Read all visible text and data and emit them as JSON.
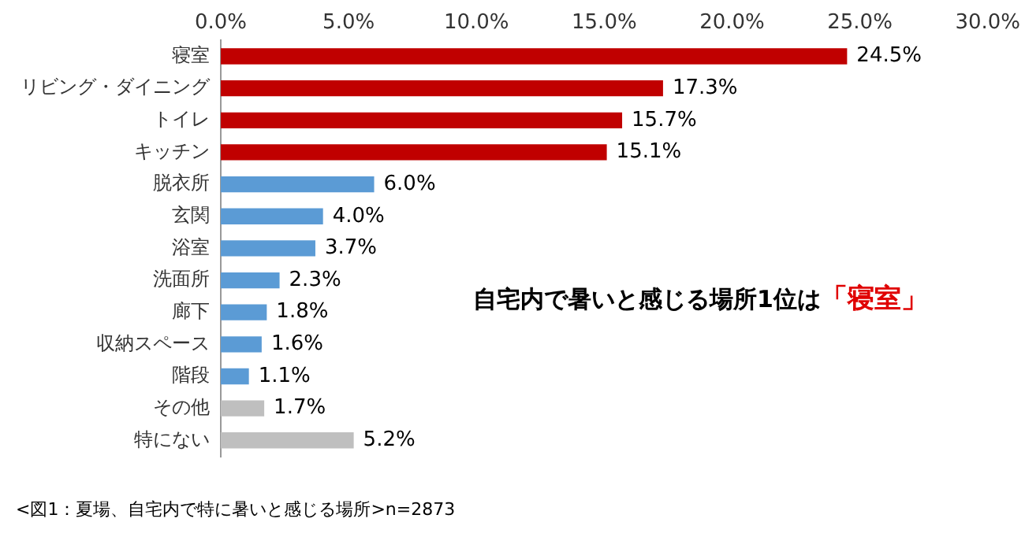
{
  "chart_data": {
    "type": "bar",
    "orientation": "horizontal",
    "categories": [
      "寝室",
      "リビング・ダイニング",
      "トイレ",
      "キッチン",
      "脱衣所",
      "玄関",
      "浴室",
      "洗面所",
      "廊下",
      "収納スペース",
      "階段",
      "その他",
      "特にない"
    ],
    "values": [
      24.5,
      17.3,
      15.7,
      15.1,
      6.0,
      4.0,
      3.7,
      2.3,
      1.8,
      1.6,
      1.1,
      1.7,
      5.2
    ],
    "colors": [
      "#c00000",
      "#c00000",
      "#c00000",
      "#c00000",
      "#5b9bd5",
      "#5b9bd5",
      "#5b9bd5",
      "#5b9bd5",
      "#5b9bd5",
      "#5b9bd5",
      "#5b9bd5",
      "#bfbfbf",
      "#bfbfbf"
    ],
    "value_labels": [
      "24.5%",
      "17.3%",
      "15.7%",
      "15.1%",
      "6.0%",
      "4.0%",
      "3.7%",
      "2.3%",
      "1.8%",
      "1.6%",
      "1.1%",
      "1.7%",
      "5.2%"
    ],
    "xlim": [
      0,
      30
    ],
    "xticks": [
      {
        "value": 0,
        "label": "0.0%"
      },
      {
        "value": 5,
        "label": "5.0%"
      },
      {
        "value": 10,
        "label": "10.0%"
      },
      {
        "value": 15,
        "label": "15.0%"
      },
      {
        "value": 20,
        "label": "20.0%"
      },
      {
        "value": 25,
        "label": "25.0%"
      },
      {
        "value": 30,
        "label": "30.0%"
      }
    ],
    "grid": false,
    "legend": false,
    "annotations": [
      "自宅内で暑いと感じる場所1位は",
      "「寝室」",
      "<図1：夏場、自宅内で特に暑いと感じる場所>n=2873"
    ]
  }
}
